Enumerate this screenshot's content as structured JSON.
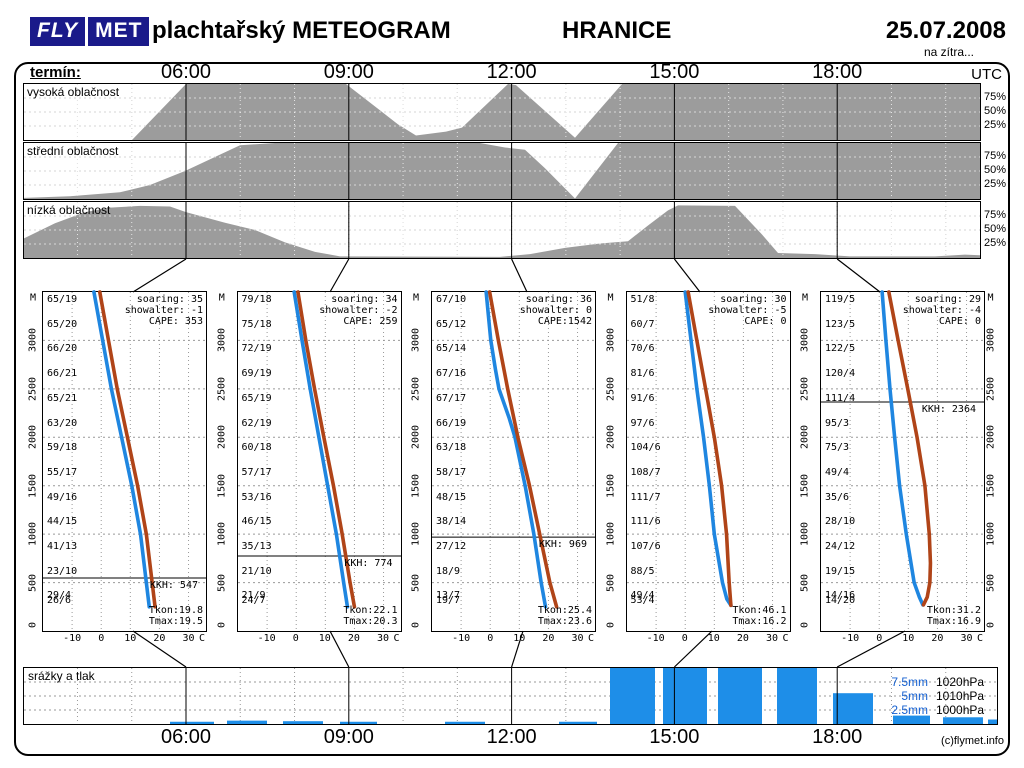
{
  "header": {
    "logo_fly": "FLY",
    "logo_met": "MET",
    "title": "plachtařský METEOGRAM",
    "station": "HRANICE",
    "date": "25.07.2008",
    "subtitle": "na zítra..."
  },
  "time_axis": {
    "label": "termín:",
    "unit": "UTC",
    "times": [
      "06:00",
      "09:00",
      "12:00",
      "15:00",
      "18:00"
    ]
  },
  "cloud_panels": {
    "names": [
      "vysoká oblačnost",
      "střední oblačnost",
      "nízká oblačnost"
    ],
    "percent_labels": [
      "75%",
      "50%",
      "25%"
    ]
  },
  "precip": {
    "label": "srážky a tlak",
    "legend": [
      {
        "mm": "7.5mm",
        "hpa": "1020hPa"
      },
      {
        "mm": "5mm",
        "hpa": "1010hPa"
      },
      {
        "mm": "2.5mm",
        "hpa": "1000hPa"
      }
    ]
  },
  "footer": {
    "credit": "(c)flymet.info"
  },
  "colors": {
    "cloud_fill": "#9c9c9c",
    "curve_red": "#b04418",
    "curve_blue": "#1f86e0",
    "precip_bar": "#1e8ee8",
    "legend_mm": "#1560d0",
    "logo_bg": "#1a1a8a"
  },
  "chart_data": {
    "cloud_cover": {
      "type": "area",
      "note": "cloud cover percent (0-100) vs time, x in page px (06:00=186, 3h=163px)",
      "series": [
        {
          "name": "vysoká oblačnost",
          "points": [
            [
              24,
              0
            ],
            [
              132,
              0
            ],
            [
              186,
              100
            ],
            [
              346,
              100
            ],
            [
              398,
              28
            ],
            [
              416,
              8
            ],
            [
              446,
              15
            ],
            [
              462,
              22
            ],
            [
              508,
              100
            ],
            [
              516,
              98
            ],
            [
              575,
              4
            ],
            [
              622,
              100
            ],
            [
              980,
              100
            ]
          ]
        },
        {
          "name": "střední oblačnost",
          "points": [
            [
              24,
              2
            ],
            [
              70,
              5
            ],
            [
              120,
              12
            ],
            [
              150,
              25
            ],
            [
              185,
              50
            ],
            [
              240,
              96
            ],
            [
              275,
              100
            ],
            [
              480,
              100
            ],
            [
              505,
              92
            ],
            [
              525,
              88
            ],
            [
              545,
              55
            ],
            [
              575,
              1
            ],
            [
              618,
              100
            ],
            [
              980,
              100
            ]
          ]
        },
        {
          "name": "nízká oblačnost",
          "points": [
            [
              24,
              35
            ],
            [
              55,
              62
            ],
            [
              85,
              82
            ],
            [
              110,
              90
            ],
            [
              140,
              93
            ],
            [
              170,
              92
            ],
            [
              186,
              82
            ],
            [
              225,
              63
            ],
            [
              255,
              50
            ],
            [
              285,
              28
            ],
            [
              315,
              11
            ],
            [
              340,
              3
            ],
            [
              500,
              2
            ],
            [
              530,
              7
            ],
            [
              565,
              18
            ],
            [
              600,
              26
            ],
            [
              628,
              30
            ],
            [
              648,
              58
            ],
            [
              668,
              85
            ],
            [
              678,
              94
            ],
            [
              735,
              93
            ],
            [
              762,
              42
            ],
            [
              778,
              9
            ],
            [
              815,
              7
            ],
            [
              850,
              3
            ],
            [
              935,
              3
            ],
            [
              965,
              6
            ],
            [
              980,
              5
            ]
          ]
        }
      ]
    },
    "sounding_axis": {
      "x_ticks": [
        "-10",
        "0",
        "10",
        "20",
        "30"
      ],
      "x_unit": "C",
      "x_range": [
        -20,
        36
      ],
      "y_ticks": [
        "3000",
        "2500",
        "2000",
        "1500",
        "1000",
        "500",
        "0"
      ],
      "y_unit": "M",
      "y_range_m": [
        0,
        3500
      ]
    },
    "soundings": [
      {
        "time": "06:00",
        "stats": [
          "soaring: 35",
          "showalter: -1",
          "CAPE: 353"
        ],
        "kkh_m": 547,
        "kkh_label": "KKH: 547",
        "tkon": "Tkon:19.8",
        "tmax": "Tmax:19.5",
        "alt_labels": [
          "65/19",
          "65/20",
          "66/20",
          "66/21",
          "65/21",
          "63/20",
          "59/18",
          "55/17",
          "49/16",
          "44/15",
          "41/13",
          "23/10"
        ],
        "surface_labels": [
          "29/4",
          "26/6"
        ],
        "curve_blue": [
          [
            -2.5,
            3500
          ],
          [
            0.5,
            3000
          ],
          [
            3.5,
            2500
          ],
          [
            7,
            2000
          ],
          [
            10.5,
            1500
          ],
          [
            13.5,
            1000
          ],
          [
            15.5,
            500
          ],
          [
            16.5,
            250
          ]
        ],
        "curve_red": [
          [
            -0.5,
            3500
          ],
          [
            2.5,
            3000
          ],
          [
            5.5,
            2500
          ],
          [
            9,
            2000
          ],
          [
            12.5,
            1500
          ],
          [
            15.5,
            1000
          ],
          [
            17.5,
            500
          ],
          [
            18.5,
            250
          ]
        ]
      },
      {
        "time": "09:00",
        "stats": [
          "soaring: 34",
          "showalter: -2",
          "CAPE: 259"
        ],
        "kkh_m": 774,
        "kkh_label": "KKH: 774",
        "tkon": "Tkon:22.1",
        "tmax": "Tmax:20.3",
        "alt_labels": [
          "79/18",
          "75/18",
          "72/19",
          "69/19",
          "65/19",
          "62/19",
          "60/18",
          "57/17",
          "53/16",
          "46/15",
          "35/13",
          "21/10"
        ],
        "surface_labels": [
          "21/9",
          "24/7"
        ],
        "curve_blue": [
          [
            -0.7,
            3500
          ],
          [
            2,
            3000
          ],
          [
            4.8,
            2500
          ],
          [
            7.8,
            2000
          ],
          [
            10.8,
            1500
          ],
          [
            13.8,
            1000
          ],
          [
            16.3,
            500
          ],
          [
            17.6,
            250
          ]
        ],
        "curve_red": [
          [
            0.6,
            3500
          ],
          [
            3.3,
            3000
          ],
          [
            6.3,
            2500
          ],
          [
            9.5,
            2000
          ],
          [
            12.8,
            1500
          ],
          [
            15.8,
            1000
          ],
          [
            18.5,
            500
          ],
          [
            20,
            250
          ]
        ]
      },
      {
        "time": "12:00",
        "stats": [
          "soaring: 36",
          "showalter: 0",
          "CAPE:1542"
        ],
        "kkh_m": 969,
        "kkh_label": "KKH: 969",
        "tkon": "Tkon:25.4",
        "tmax": "Tmax:23.6",
        "alt_labels": [
          "67/10",
          "65/12",
          "65/14",
          "67/16",
          "67/17",
          "66/19",
          "63/18",
          "58/17",
          "48/15",
          "38/14",
          "27/12",
          "18/9"
        ],
        "surface_labels": [
          "13/7",
          "19/7"
        ],
        "curve_blue": [
          [
            -1.4,
            3500
          ],
          [
            0.2,
            3000
          ],
          [
            1.8,
            2700
          ],
          [
            3,
            2500
          ],
          [
            6.5,
            2200
          ],
          [
            8.5,
            2000
          ],
          [
            12,
            1500
          ],
          [
            15,
            1000
          ],
          [
            17.5,
            500
          ],
          [
            19,
            250
          ]
        ],
        "curve_red": [
          [
            -0.2,
            3500
          ],
          [
            2.8,
            3000
          ],
          [
            6,
            2500
          ],
          [
            9.5,
            2000
          ],
          [
            13.5,
            1500
          ],
          [
            17,
            1000
          ],
          [
            20.5,
            500
          ],
          [
            22.8,
            250
          ]
        ]
      },
      {
        "time": "15:00",
        "stats": [
          "soaring: 30",
          "showalter: -5",
          "CAPE: 0"
        ],
        "kkh_m": null,
        "kkh_label": null,
        "tkon": "Tkon:46.1",
        "tmax": "Tmax:16.2",
        "alt_labels": [
          "51/8",
          "60/7",
          "70/6",
          "81/6",
          "91/6",
          "97/6",
          "104/6",
          "108/7",
          "111/7",
          "111/6",
          "107/6",
          "88/5"
        ],
        "surface_labels": [
          "49/4",
          "53/4"
        ],
        "curve_blue": [
          [
            0,
            3500
          ],
          [
            2,
            3000
          ],
          [
            4,
            2500
          ],
          [
            6.3,
            2000
          ],
          [
            8.3,
            1500
          ],
          [
            10,
            1000
          ],
          [
            12.8,
            500
          ],
          [
            14.3,
            330
          ],
          [
            15.7,
            265
          ]
        ],
        "curve_red": [
          [
            1,
            3500
          ],
          [
            4,
            3000
          ],
          [
            7,
            2500
          ],
          [
            10,
            2000
          ],
          [
            12.5,
            1500
          ],
          [
            14.2,
            1000
          ],
          [
            15.1,
            500
          ],
          [
            15.6,
            300
          ],
          [
            15.7,
            265
          ]
        ]
      },
      {
        "time": "18:00",
        "stats": [
          "soaring: 29",
          "showalter: -4",
          "CAPE: 0"
        ],
        "kkh_m": 2364,
        "kkh_label": "KKH: 2364",
        "tkon": "Tkon:31.2",
        "tmax": "Tmax:16.9",
        "alt_labels": [
          "119/5",
          "123/5",
          "122/5",
          "120/4",
          "111/4",
          "95/3",
          "75/3",
          "49/4",
          "35/6",
          "28/10",
          "24/12",
          "19/15"
        ],
        "surface_labels": [
          "14/16",
          "14/20"
        ],
        "curve_blue": [
          [
            1,
            3500
          ],
          [
            2.3,
            3000
          ],
          [
            3.7,
            2500
          ],
          [
            5.3,
            2000
          ],
          [
            7,
            1500
          ],
          [
            9.3,
            1000
          ],
          [
            12,
            500
          ],
          [
            13.8,
            350
          ],
          [
            15,
            270
          ]
        ],
        "curve_red": [
          [
            3.3,
            3500
          ],
          [
            6.5,
            3000
          ],
          [
            9.8,
            2500
          ],
          [
            13,
            2000
          ],
          [
            15.7,
            1500
          ],
          [
            17.2,
            1000
          ],
          [
            17.6,
            700
          ],
          [
            17.4,
            500
          ],
          [
            16.5,
            350
          ],
          [
            15.2,
            270
          ]
        ]
      }
    ],
    "precipitation": {
      "type": "bar",
      "note": "bars: [x_page_px, width_px, height_percent_of_panel]; gridlines 25/50/75% = 2.5/5/7.5mm and 1000/1010/1020hPa",
      "bars": [
        [
          170,
          44,
          4
        ],
        [
          227,
          40,
          6
        ],
        [
          283,
          40,
          5
        ],
        [
          340,
          37,
          4
        ],
        [
          445,
          40,
          4
        ],
        [
          559,
          38,
          4
        ],
        [
          610,
          45,
          100
        ],
        [
          663,
          44,
          100
        ],
        [
          718,
          44,
          100
        ],
        [
          777,
          40,
          100
        ],
        [
          833,
          40,
          55
        ],
        [
          893,
          37,
          15
        ],
        [
          943,
          40,
          12
        ],
        [
          988,
          12,
          8
        ]
      ]
    }
  }
}
